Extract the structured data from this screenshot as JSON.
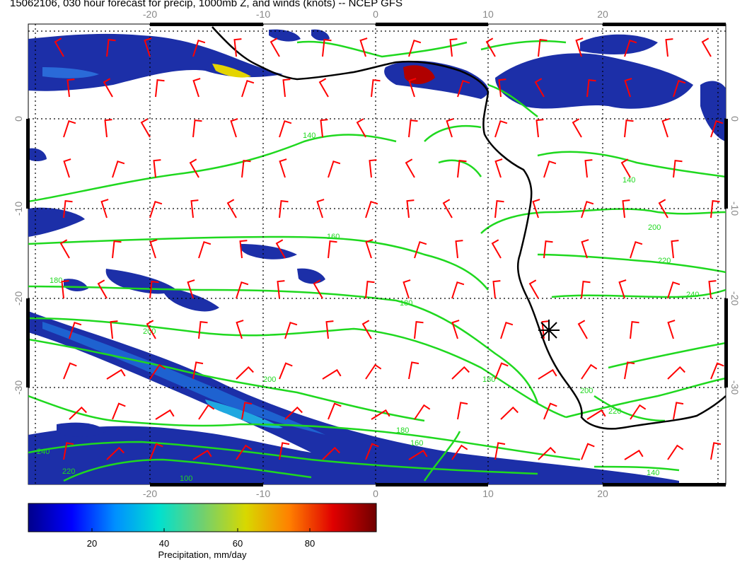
{
  "title": "15062106, 030 hour forecast for precip, 1000mb Z, and winds (knots) -- NCEP GFS",
  "map": {
    "lon_ticks": [
      "-20",
      "-10",
      "0",
      "10",
      "20"
    ],
    "lat_ticks": [
      "0",
      "-10",
      "-20",
      "-30"
    ],
    "lon_range": [
      -31,
      31
    ],
    "lat_range": [
      -40,
      10
    ],
    "marker": {
      "symbol": "asterisk",
      "lon": 15,
      "lat": -23.5
    },
    "contour_levels": [
      "100",
      "120",
      "140",
      "160",
      "180",
      "200",
      "220",
      "240"
    ]
  },
  "colorbar": {
    "label": "Precipitation, mm/day",
    "ticks": [
      "20",
      "40",
      "60",
      "80"
    ],
    "range": [
      0,
      100
    ],
    "colors": [
      "#00008b",
      "#0000ff",
      "#0090ff",
      "#00e0d0",
      "#70d070",
      "#d8d800",
      "#ff8000",
      "#e00000",
      "#700000"
    ]
  },
  "colors": {
    "precip_low": "#1c2fa8",
    "contour": "#1fd81f",
    "wind_barb": "#ff0000",
    "coast": "#000000",
    "grid": "#000000"
  }
}
